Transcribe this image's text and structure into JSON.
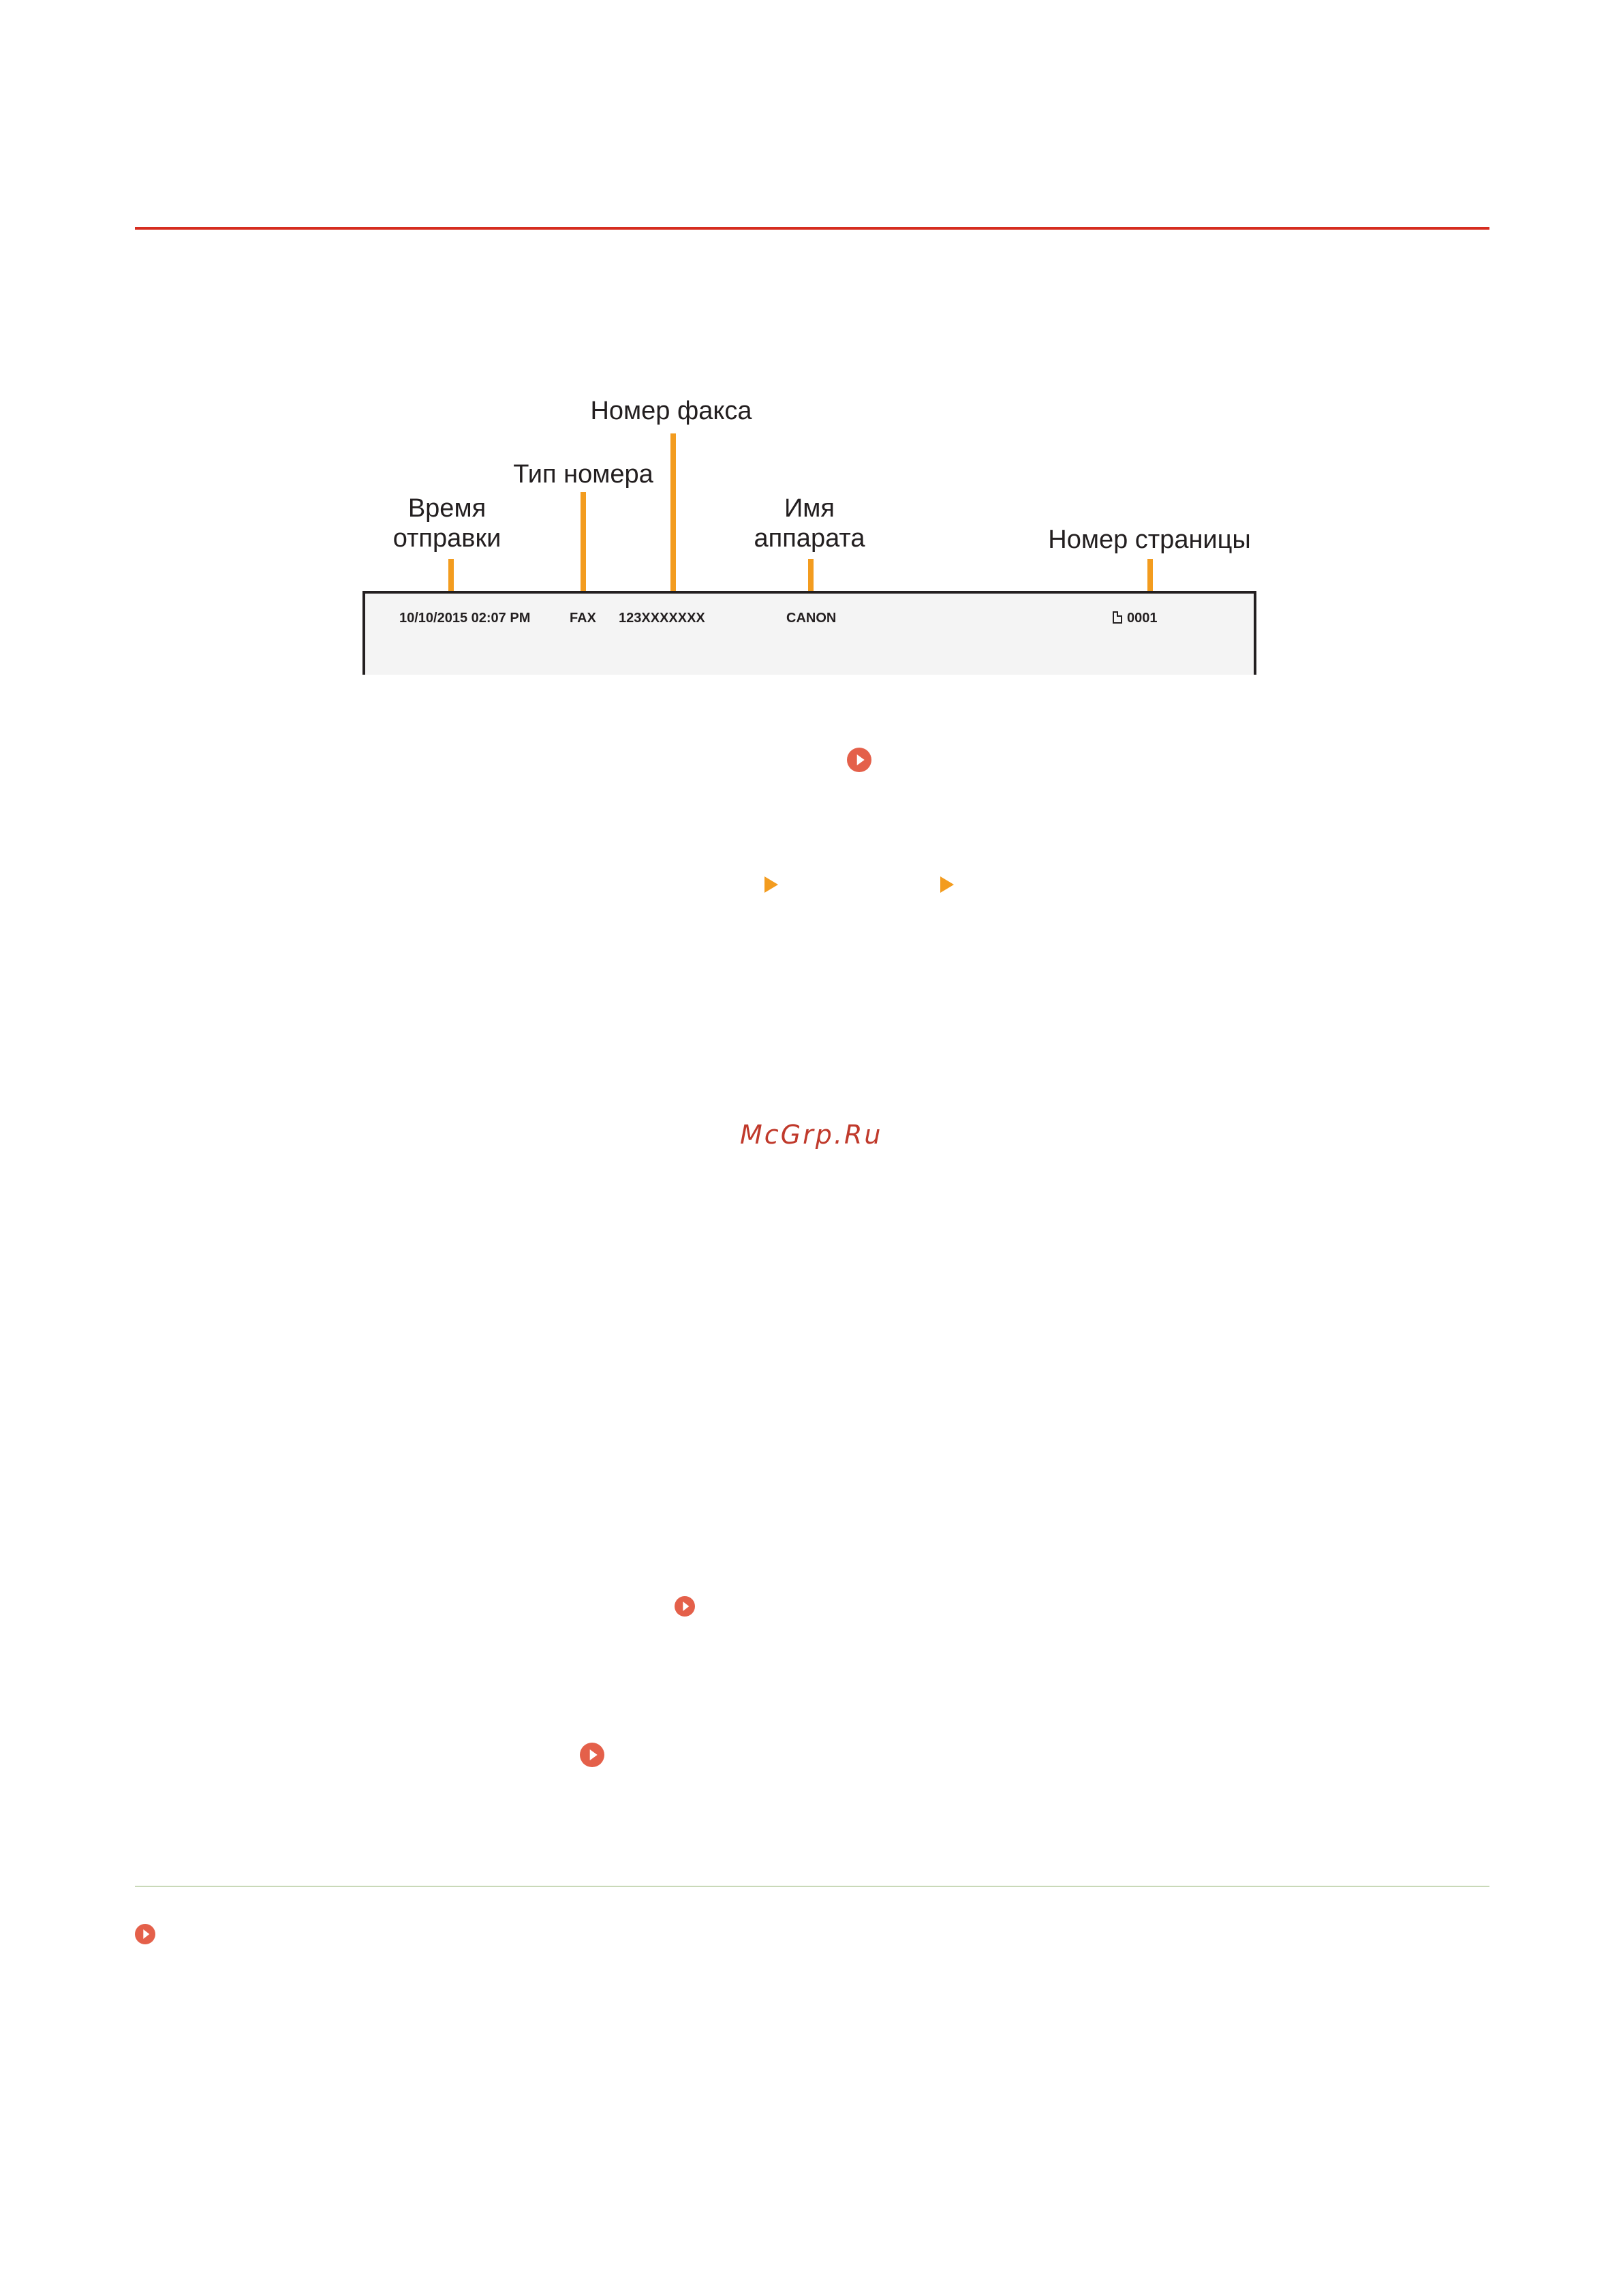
{
  "diagram": {
    "callouts": {
      "send_time_line1": "Время",
      "send_time_line2": "отправки",
      "number_type": "Тип номера",
      "fax_number": "Номер факса",
      "device_name_line1": "Имя",
      "device_name_line2": "аппарата",
      "page_number": "Номер страницы"
    },
    "header_strip": {
      "date_time": "10/10/2015  02:07 PM",
      "number_type": "FAX",
      "fax_number": "123XXXXXXX",
      "device_name": "CANON",
      "page_number": "0001"
    }
  },
  "watermark": "McGrp.Ru",
  "colors": {
    "top_rule": "#d62d20",
    "bottom_rule": "#c9d9b8",
    "leader_lines": "#f39c1f",
    "link_icons": "#e4604a",
    "menu_arrows": "#f39c1f"
  },
  "icons": {
    "link_icon": "circle-play-icon",
    "menu_arrow": "triangle-right-icon",
    "page_icon": "page-icon"
  }
}
